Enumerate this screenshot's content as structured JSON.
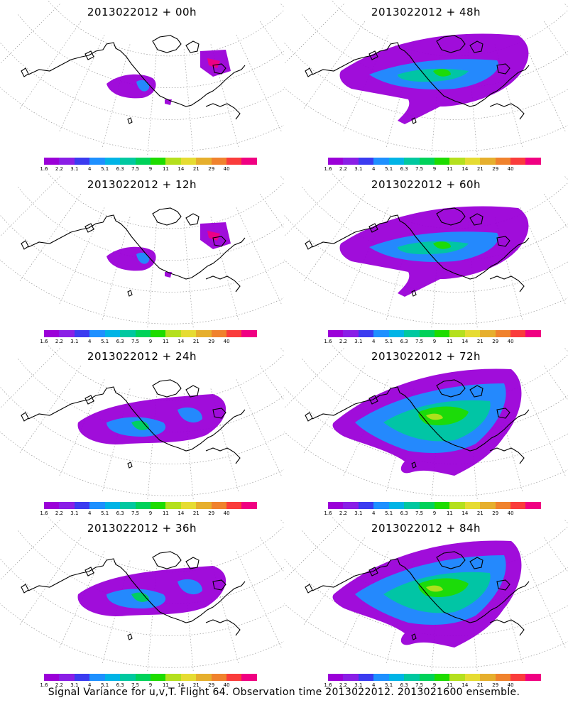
{
  "panels": [
    {
      "title": "2013022012 + 00h",
      "level": 0
    },
    {
      "title": "2013022012 + 48h",
      "level": 2
    },
    {
      "title": "2013022012 + 12h",
      "level": 0
    },
    {
      "title": "2013022012 + 60h",
      "level": 2
    },
    {
      "title": "2013022012 + 24h",
      "level": 1
    },
    {
      "title": "2013022012 + 72h",
      "level": 3
    },
    {
      "title": "2013022012 + 36h",
      "level": 1
    },
    {
      "title": "2013022012 + 84h",
      "level": 3
    }
  ],
  "colorbar": {
    "colors": [
      "#9b00d8",
      "#8a1ee6",
      "#3b3bf0",
      "#1e90ff",
      "#00b4e6",
      "#00c8a0",
      "#00d25a",
      "#1edc00",
      "#b4e01e",
      "#e6dc32",
      "#e6af2d",
      "#f0822d",
      "#fa3c3c",
      "#f00082"
    ],
    "labels": [
      "1.6",
      "2.2",
      "3.1",
      "4",
      "5.1",
      "6.3",
      "7.5",
      "9",
      "11",
      "14",
      "21",
      "29",
      "40"
    ]
  },
  "footer": "Signal Variance for u,v,T. Flight 64. Observation time 2013022012. 2013021600 ensemble."
}
